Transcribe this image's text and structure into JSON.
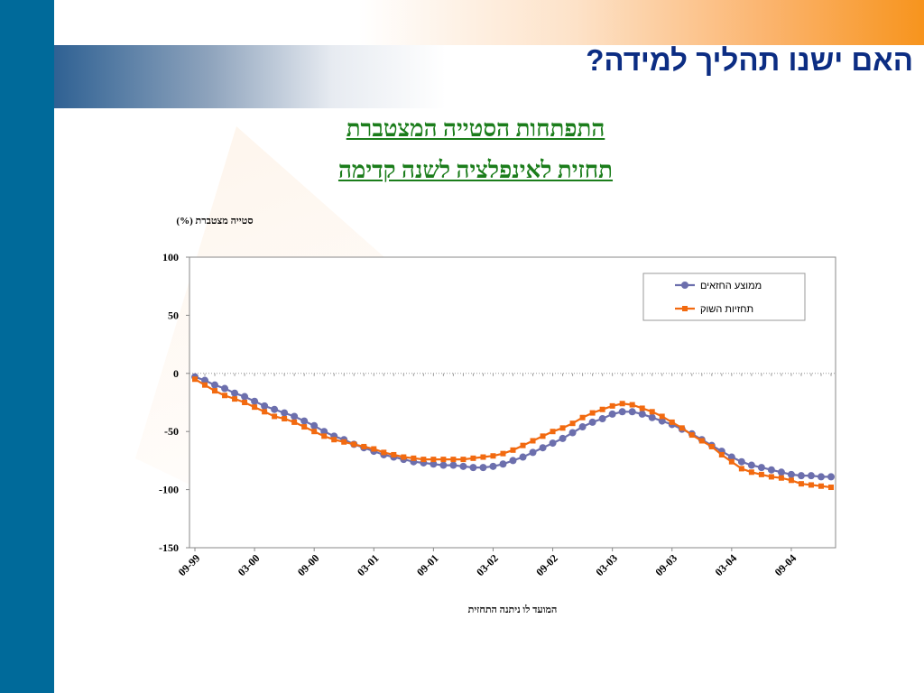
{
  "slide": {
    "title": "האם ישנו תהליך למידה?",
    "subtitle_line1": "התפתחות הסטייה המצטברת",
    "subtitle_line2": "תחזית לאינפלציה לשנה קדימה",
    "colors": {
      "left_bar": "#006a9a",
      "title": "#0c2d83",
      "subtitle": "#1b7d1b"
    }
  },
  "chart_data": {
    "type": "line",
    "ylabel": "סטייה מצטברת (%)",
    "xlabel": "המועד לו ניתנה התחזית",
    "ylim": [
      -150,
      100
    ],
    "yticks": [
      100,
      50,
      0,
      -50,
      -100,
      -150
    ],
    "xtick_labels": [
      "09-99",
      "03-00",
      "09-00",
      "03-01",
      "09-01",
      "03-02",
      "09-02",
      "03-03",
      "09-03",
      "03-04",
      "09-04"
    ],
    "x_months": [
      "09-99",
      "10-99",
      "11-99",
      "12-99",
      "01-00",
      "02-00",
      "03-00",
      "04-00",
      "05-00",
      "06-00",
      "07-00",
      "08-00",
      "09-00",
      "10-00",
      "11-00",
      "12-00",
      "01-01",
      "02-01",
      "03-01",
      "04-01",
      "05-01",
      "06-01",
      "07-01",
      "08-01",
      "09-01",
      "10-01",
      "11-01",
      "12-01",
      "01-02",
      "02-02",
      "03-02",
      "04-02",
      "05-02",
      "06-02",
      "07-02",
      "08-02",
      "09-02",
      "10-02",
      "11-02",
      "12-02",
      "01-03",
      "02-03",
      "03-03",
      "04-03",
      "05-03",
      "06-03",
      "07-03",
      "08-03",
      "09-03",
      "10-03",
      "11-03",
      "12-03",
      "01-04",
      "02-04",
      "03-04",
      "04-04",
      "05-04",
      "06-04",
      "07-04",
      "08-04",
      "09-04",
      "10-04",
      "11-04",
      "12-04",
      "01-05"
    ],
    "legend_position": "top-right",
    "grid": false,
    "zero_line": "dotted",
    "series": [
      {
        "name": "ממוצע החזאים",
        "color": "#6c6fad",
        "marker": "circle",
        "values": [
          -3,
          -6,
          -10,
          -13,
          -17,
          -20,
          -24,
          -28,
          -31,
          -34,
          -37,
          -41,
          -45,
          -50,
          -54,
          -57,
          -61,
          -64,
          -67,
          -70,
          -72,
          -74,
          -76,
          -77,
          -78,
          -79,
          -79,
          -80,
          -81,
          -81,
          -80,
          -78,
          -75,
          -72,
          -68,
          -64,
          -60,
          -56,
          -51,
          -46,
          -42,
          -39,
          -35,
          -33,
          -33,
          -35,
          -38,
          -41,
          -44,
          -48,
          -52,
          -57,
          -62,
          -67,
          -72,
          -76,
          -79,
          -81,
          -83,
          -85,
          -87,
          -88,
          -88,
          -89,
          -89
        ]
      },
      {
        "name": "תחזיות השוק",
        "color": "#f26a10",
        "marker": "square",
        "values": [
          -5,
          -10,
          -15,
          -19,
          -22,
          -25,
          -29,
          -33,
          -37,
          -39,
          -42,
          -46,
          -50,
          -54,
          -57,
          -59,
          -61,
          -63,
          -65,
          -68,
          -70,
          -72,
          -73,
          -74,
          -74,
          -74,
          -74,
          -74,
          -73,
          -72,
          -71,
          -69,
          -66,
          -62,
          -58,
          -54,
          -50,
          -47,
          -43,
          -38,
          -34,
          -31,
          -28,
          -26,
          -27,
          -30,
          -33,
          -37,
          -42,
          -47,
          -53,
          -58,
          -63,
          -70,
          -76,
          -82,
          -85,
          -87,
          -89,
          -90,
          -92,
          -95,
          -96,
          -97,
          -98
        ]
      }
    ]
  }
}
